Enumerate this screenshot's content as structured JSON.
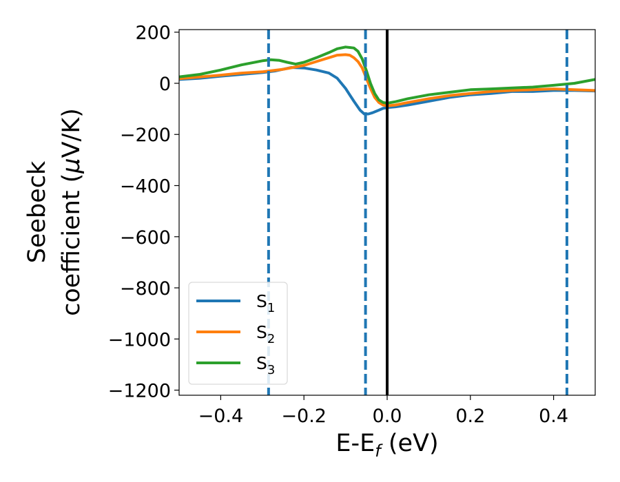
{
  "chart_data": {
    "type": "line",
    "xlabel": "E-E",
    "xlabel_sub": "f",
    "xlabel_unit": " (eV)",
    "ylabel_line1": "Seebeck",
    "ylabel_line2": "coefficient  (",
    "ylabel_mu": "μ",
    "ylabel_unit_end": "V/K)",
    "xlim": [
      -0.5,
      0.5
    ],
    "ylim": [
      -1220,
      210
    ],
    "xticks": [
      -0.4,
      -0.2,
      0.0,
      0.2,
      0.4
    ],
    "xtick_labels": [
      "−0.4",
      "−0.2",
      "0.0",
      "0.2",
      "0.4"
    ],
    "yticks": [
      200,
      0,
      -200,
      -400,
      -600,
      -800,
      -1000,
      -1200
    ],
    "ytick_labels": [
      "200",
      "0",
      "−200",
      "−400",
      "−600",
      "−800",
      "−1000",
      "−1200"
    ],
    "grid": false,
    "legend_position": "lower-left",
    "vlines": [
      {
        "x": -0.285,
        "style": "dashed",
        "color": "#1f77b4"
      },
      {
        "x": -0.052,
        "style": "dashed",
        "color": "#1f77b4"
      },
      {
        "x": 0.0,
        "style": "solid",
        "color": "#000000"
      },
      {
        "x": 0.432,
        "style": "dashed",
        "color": "#1f77b4"
      }
    ],
    "series": [
      {
        "name": "S",
        "sub": "1",
        "color": "#1f77b4",
        "points": [
          [
            -0.5,
            15
          ],
          [
            -0.45,
            20
          ],
          [
            -0.4,
            28
          ],
          [
            -0.35,
            35
          ],
          [
            -0.3,
            42
          ],
          [
            -0.27,
            48
          ],
          [
            -0.25,
            55
          ],
          [
            -0.23,
            62
          ],
          [
            -0.2,
            60
          ],
          [
            -0.17,
            52
          ],
          [
            -0.14,
            40
          ],
          [
            -0.12,
            20
          ],
          [
            -0.1,
            -20
          ],
          [
            -0.08,
            -70
          ],
          [
            -0.065,
            -105
          ],
          [
            -0.055,
            -120
          ],
          [
            -0.045,
            -120
          ],
          [
            -0.035,
            -115
          ],
          [
            -0.02,
            -105
          ],
          [
            -0.01,
            -98
          ],
          [
            0.0,
            -95
          ],
          [
            0.02,
            -92
          ],
          [
            0.05,
            -85
          ],
          [
            0.1,
            -70
          ],
          [
            0.15,
            -55
          ],
          [
            0.2,
            -45
          ],
          [
            0.25,
            -40
          ],
          [
            0.3,
            -32
          ],
          [
            0.35,
            -32
          ],
          [
            0.4,
            -28
          ],
          [
            0.45,
            -28
          ],
          [
            0.5,
            -30
          ]
        ]
      },
      {
        "name": "S",
        "sub": "2",
        "color": "#ff7f0e",
        "points": [
          [
            -0.5,
            18
          ],
          [
            -0.45,
            25
          ],
          [
            -0.4,
            32
          ],
          [
            -0.35,
            40
          ],
          [
            -0.3,
            45
          ],
          [
            -0.25,
            55
          ],
          [
            -0.2,
            70
          ],
          [
            -0.17,
            85
          ],
          [
            -0.14,
            100
          ],
          [
            -0.12,
            110
          ],
          [
            -0.1,
            112
          ],
          [
            -0.09,
            110
          ],
          [
            -0.08,
            100
          ],
          [
            -0.07,
            85
          ],
          [
            -0.06,
            60
          ],
          [
            -0.05,
            20
          ],
          [
            -0.04,
            -20
          ],
          [
            -0.03,
            -55
          ],
          [
            -0.02,
            -75
          ],
          [
            -0.01,
            -85
          ],
          [
            0.0,
            -88
          ],
          [
            0.02,
            -85
          ],
          [
            0.05,
            -75
          ],
          [
            0.1,
            -60
          ],
          [
            0.15,
            -48
          ],
          [
            0.2,
            -40
          ],
          [
            0.25,
            -32
          ],
          [
            0.3,
            -28
          ],
          [
            0.35,
            -25
          ],
          [
            0.4,
            -22
          ],
          [
            0.45,
            -25
          ],
          [
            0.5,
            -28
          ]
        ]
      },
      {
        "name": "S",
        "sub": "3",
        "color": "#2ca02c",
        "points": [
          [
            -0.5,
            25
          ],
          [
            -0.45,
            35
          ],
          [
            -0.4,
            52
          ],
          [
            -0.35,
            72
          ],
          [
            -0.3,
            88
          ],
          [
            -0.28,
            92
          ],
          [
            -0.26,
            90
          ],
          [
            -0.24,
            82
          ],
          [
            -0.22,
            75
          ],
          [
            -0.2,
            82
          ],
          [
            -0.17,
            100
          ],
          [
            -0.14,
            120
          ],
          [
            -0.12,
            135
          ],
          [
            -0.1,
            142
          ],
          [
            -0.08,
            138
          ],
          [
            -0.07,
            125
          ],
          [
            -0.06,
            95
          ],
          [
            -0.05,
            50
          ],
          [
            -0.04,
            0
          ],
          [
            -0.03,
            -40
          ],
          [
            -0.02,
            -65
          ],
          [
            -0.01,
            -75
          ],
          [
            0.0,
            -78
          ],
          [
            0.02,
            -72
          ],
          [
            0.05,
            -60
          ],
          [
            0.1,
            -45
          ],
          [
            0.15,
            -35
          ],
          [
            0.2,
            -25
          ],
          [
            0.25,
            -22
          ],
          [
            0.3,
            -18
          ],
          [
            0.35,
            -15
          ],
          [
            0.4,
            -8
          ],
          [
            0.45,
            0
          ],
          [
            0.5,
            15
          ]
        ]
      }
    ]
  }
}
